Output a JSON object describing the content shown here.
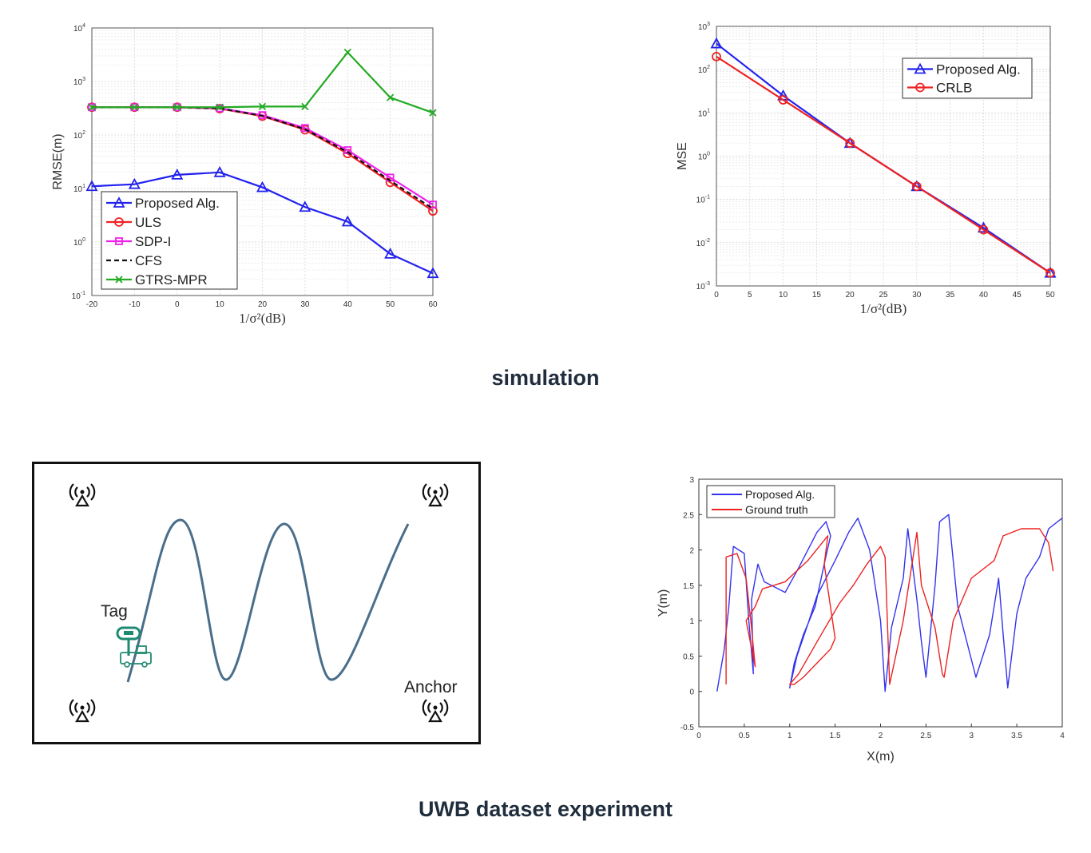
{
  "captions": {
    "top": "simulation",
    "bottom": "UWB dataset experiment"
  },
  "chart_data": [
    {
      "id": "rmse",
      "type": "line",
      "xlabel": "1/σ²(dB)",
      "ylabel": "RMSE(m)",
      "yscale": "log",
      "xlim": [
        -20,
        60
      ],
      "ylim": [
        0.1,
        10000
      ],
      "xticks": [
        -20,
        -10,
        0,
        10,
        20,
        30,
        40,
        50,
        60
      ],
      "ytick_labels": [
        {
          "v": 0.1,
          "base": "10",
          "exp": "-1"
        },
        {
          "v": 1,
          "base": "10",
          "exp": "0"
        },
        {
          "v": 10,
          "base": "10",
          "exp": "1"
        },
        {
          "v": 100,
          "base": "10",
          "exp": "2"
        },
        {
          "v": 1000,
          "base": "10",
          "exp": "3"
        },
        {
          "v": 10000,
          "base": "10",
          "exp": "4"
        }
      ],
      "grid": true,
      "legend_position": "lower-left",
      "x": [
        -20,
        -10,
        0,
        10,
        20,
        30,
        40,
        50,
        60
      ],
      "series": [
        {
          "name": "Proposed Alg.",
          "color": "#2222ee",
          "marker": "triangle",
          "values": [
            11,
            12,
            18,
            20,
            10.5,
            4.5,
            2.4,
            0.6,
            0.26
          ]
        },
        {
          "name": "ULS",
          "color": "#ee2222",
          "marker": "circle",
          "values": [
            330,
            330,
            330,
            310,
            225,
            125,
            45,
            13,
            3.8
          ]
        },
        {
          "name": "SDP-I",
          "color": "#ee22ee",
          "marker": "square",
          "values": [
            330,
            330,
            330,
            315,
            235,
            135,
            52,
            16,
            5
          ]
        },
        {
          "name": "CFS",
          "color": "#111111",
          "marker": "none",
          "dash": true,
          "values": [
            330,
            330,
            330,
            315,
            228,
            128,
            48,
            14,
            4.2
          ]
        },
        {
          "name": "GTRS-MPR",
          "color": "#22aa22",
          "marker": "x",
          "values": [
            330,
            330,
            330,
            330,
            340,
            340,
            3500,
            500,
            260
          ]
        }
      ]
    },
    {
      "id": "mse",
      "type": "line",
      "xlabel": "1/σ²(dB)",
      "ylabel": "MSE",
      "yscale": "log",
      "xlim": [
        0,
        50
      ],
      "ylim": [
        0.001,
        1000
      ],
      "xticks": [
        0,
        5,
        10,
        15,
        20,
        25,
        30,
        35,
        40,
        45,
        50
      ],
      "ytick_labels": [
        {
          "v": 0.001,
          "base": "10",
          "exp": "-3"
        },
        {
          "v": 0.01,
          "base": "10",
          "exp": "-2"
        },
        {
          "v": 0.1,
          "base": "10",
          "exp": "-1"
        },
        {
          "v": 1,
          "base": "10",
          "exp": "0"
        },
        {
          "v": 10,
          "base": "10",
          "exp": "1"
        },
        {
          "v": 100,
          "base": "10",
          "exp": "2"
        },
        {
          "v": 1000,
          "base": "10",
          "exp": "3"
        }
      ],
      "grid": true,
      "legend_position": "top-right",
      "x": [
        0,
        10,
        20,
        30,
        40,
        50
      ],
      "series": [
        {
          "name": "Proposed Alg.",
          "color": "#2222ee",
          "marker": "triangle",
          "values": [
            400,
            25,
            2,
            0.2,
            0.022,
            0.002
          ]
        },
        {
          "name": "CRLB",
          "color": "#ee2222",
          "marker": "circle",
          "values": [
            200,
            20,
            2,
            0.2,
            0.02,
            0.002
          ]
        }
      ]
    },
    {
      "id": "traj",
      "type": "line",
      "xlabel": "X(m)",
      "ylabel": "Y(m)",
      "xlim": [
        0,
        4
      ],
      "ylim": [
        -0.5,
        3
      ],
      "xticks": [
        0,
        0.5,
        1,
        1.5,
        2,
        2.5,
        3,
        3.5,
        4
      ],
      "yticks": [
        -0.5,
        0,
        0.5,
        1,
        1.5,
        2,
        2.5,
        3
      ],
      "grid": false,
      "legend_position": "top-left",
      "series": [
        {
          "name": "Proposed Alg.",
          "color": "#3333ee",
          "x": [
            0.2,
            0.28,
            0.33,
            0.38,
            0.5,
            0.55,
            0.6,
            0.58,
            0.65,
            0.72,
            0.95,
            1.1,
            1.3,
            1.4,
            1.45,
            1.38,
            1.28,
            1.15,
            1.05,
            1.0,
            1.08,
            1.2,
            1.3,
            1.5,
            1.65,
            1.75,
            1.88,
            2.0,
            2.05,
            2.12,
            2.25,
            2.3,
            2.4,
            2.45,
            2.5,
            2.6,
            2.65,
            2.75,
            2.85,
            3.05,
            3.2,
            3.3,
            3.35,
            3.4,
            3.5,
            3.6,
            3.75,
            3.85,
            4.0
          ],
          "y": [
            0,
            0.6,
            1.2,
            2.05,
            1.95,
            1.0,
            0.25,
            1.3,
            1.8,
            1.55,
            1.4,
            1.75,
            2.25,
            2.4,
            2.2,
            1.8,
            1.2,
            0.8,
            0.4,
            0.05,
            0.5,
            0.95,
            1.35,
            1.85,
            2.25,
            2.45,
            2.0,
            1.0,
            0.0,
            0.9,
            1.6,
            2.3,
            1.3,
            0.7,
            0.2,
            1.5,
            2.4,
            2.5,
            1.2,
            0.2,
            0.8,
            1.6,
            0.8,
            0.05,
            1.1,
            1.6,
            1.9,
            2.3,
            2.45
          ]
        },
        {
          "name": "Ground truth",
          "color": "#ee2222",
          "x": [
            0.3,
            0.3,
            0.42,
            0.52,
            0.58,
            0.62,
            0.52,
            0.62,
            0.7,
            0.95,
            1.2,
            1.42,
            1.38,
            1.5,
            1.45,
            1.3,
            1.15,
            1.05,
            1.0,
            1.1,
            1.3,
            1.55,
            1.7,
            1.85,
            2.0,
            2.05,
            2.1,
            2.25,
            2.4,
            2.45,
            2.6,
            2.68,
            2.7,
            2.8,
            3.0,
            3.25,
            3.35,
            3.55,
            3.75,
            3.85,
            3.9
          ],
          "y": [
            0.1,
            1.9,
            1.95,
            1.6,
            0.9,
            0.35,
            1.0,
            1.2,
            1.45,
            1.55,
            1.85,
            2.2,
            1.8,
            0.75,
            0.6,
            0.4,
            0.2,
            0.1,
            0.1,
            0.25,
            0.7,
            1.25,
            1.5,
            1.8,
            2.05,
            1.9,
            0.1,
            1.0,
            2.25,
            1.5,
            0.9,
            0.25,
            0.2,
            1.0,
            1.6,
            1.85,
            2.2,
            2.3,
            2.3,
            2.1,
            1.7
          ]
        }
      ]
    }
  ],
  "diagram": {
    "tag_label": "Tag",
    "anchor_label": "Anchor",
    "anchor_icon": "wireless-anchor-icon",
    "tag_icon": "tag-vehicle-icon"
  }
}
